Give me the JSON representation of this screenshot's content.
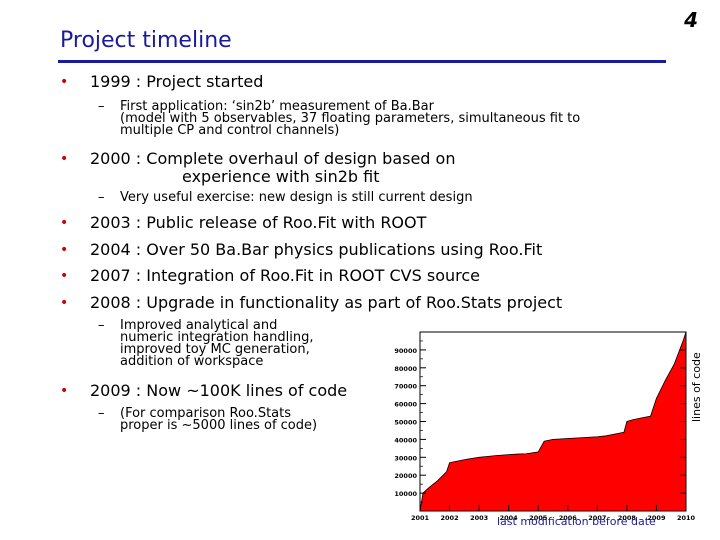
{
  "slide": {
    "title": "Project timeline",
    "page_number": "4"
  },
  "bullets": [
    {
      "text": "1999 : Project started",
      "sub": [
        "First application: ‘sin2b’ measurement of Ba.Bar",
        "(model with 5 observables, 37 floating parameters, simultaneous fit to",
        "multiple CP and control channels)"
      ]
    },
    {
      "text": "2000 : Complete overhaul of design based on",
      "text2": "experience with sin2b fit",
      "sub": [
        "Very useful exercise: new design is still current design"
      ]
    },
    {
      "text": "2003 : Public release of Roo.Fit with ROOT"
    },
    {
      "text": "2004 : Over 50 Ba.Bar physics publications using Roo.Fit"
    },
    {
      "text": "2007 : Integration of Roo.Fit in ROOT CVS source"
    },
    {
      "text": "2008 : Upgrade in functionality as part of Roo.Stats project",
      "sub": [
        "Improved analytical and",
        "numeric integration handling,",
        "improved toy MC generation,",
        "addition of workspace"
      ]
    },
    {
      "text": "2009 : Now ~100K lines of code",
      "sub": [
        "(For comparison Roo.Stats",
        " proper is ~5000 lines of code)"
      ]
    }
  ],
  "chart_data": {
    "type": "area",
    "xlabel": "last modification before date",
    "ylabel": "lines of code",
    "xlim": [
      2001,
      2010
    ],
    "ylim": [
      0,
      100000
    ],
    "x_ticks": [
      "2001",
      "2002",
      "2003",
      "2004",
      "2005",
      "2006",
      "2007",
      "2008",
      "2009",
      "2010"
    ],
    "y_ticks": [
      "10000",
      "20000",
      "30000",
      "40000",
      "50000",
      "60000",
      "70000",
      "80000",
      "90000"
    ],
    "color": "#ff0000",
    "x": [
      2001.0,
      2001.1,
      2001.3,
      2001.6,
      2001.9,
      2002.0,
      2002.3,
      2002.6,
      2003.0,
      2003.3,
      2003.6,
      2004.0,
      2004.3,
      2004.6,
      2005.0,
      2005.2,
      2005.5,
      2006.0,
      2006.5,
      2007.0,
      2007.3,
      2007.6,
      2007.9,
      2008.0,
      2008.2,
      2008.5,
      2008.8,
      2009.0,
      2009.3,
      2009.6,
      2009.9,
      2010.0
    ],
    "y": [
      0,
      10000,
      13000,
      17000,
      22000,
      27000,
      28000,
      29000,
      30000,
      30500,
      31000,
      31500,
      31800,
      32000,
      33000,
      39000,
      40000,
      40500,
      41000,
      41500,
      42000,
      43000,
      44000,
      50000,
      51000,
      52000,
      53000,
      63000,
      73000,
      82000,
      95000,
      100000
    ]
  }
}
